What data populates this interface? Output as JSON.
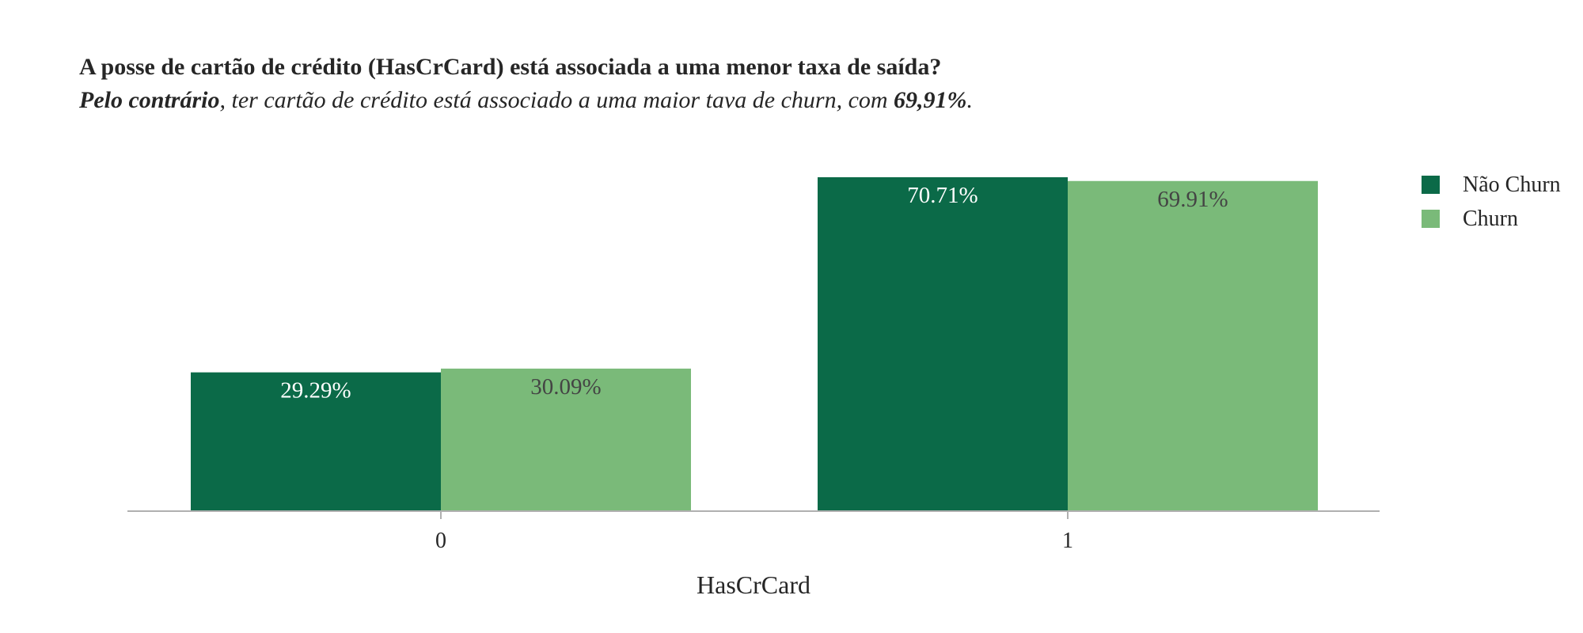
{
  "title": "A posse de cartão de crédito (HasCrCard) está associada a uma menor taxa de saída?",
  "subtitle": {
    "bold_start": "Pelo contrário",
    "middle": ", ter cartão de crédito está associado a uma maior tava de churn, com ",
    "bold_value": "69,91%",
    "end": "."
  },
  "chart_data": {
    "type": "bar",
    "xlabel": "HasCrCard",
    "ylabel": "",
    "categories": [
      "0",
      "1"
    ],
    "ylim": [
      0,
      75
    ],
    "grid": false,
    "legend_position": "top-right",
    "series": [
      {
        "name": "Não Churn",
        "color": "#0b6a48",
        "label_color": "#ffffff",
        "values": [
          29.29,
          70.71
        ],
        "labels": [
          "29.29%",
          "70.71%"
        ]
      },
      {
        "name": "Churn",
        "color": "#7aba79",
        "label_color": "#444444",
        "values": [
          30.09,
          69.91
        ],
        "labels": [
          "30.09%",
          "69.91%"
        ]
      }
    ]
  }
}
